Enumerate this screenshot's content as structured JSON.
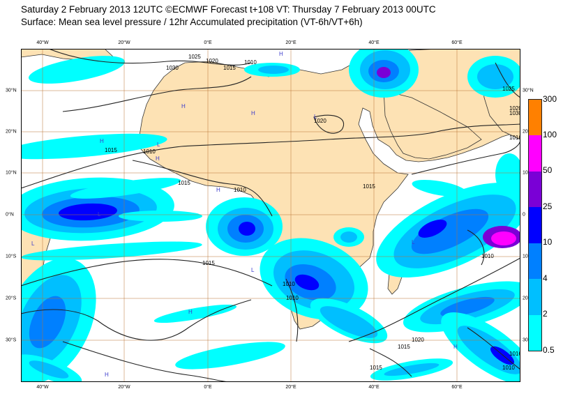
{
  "title_line1": "Saturday 2 February 2013 12UTC ©ECMWF Forecast t+108 VT: Thursday 7 February 2013 00UTC",
  "title_line2": "Surface: Mean sea level pressure / 12hr Accumulated precipitation (VT-6h/VT+6h)",
  "axes": {
    "lon_labels": [
      "40°W",
      "20°W",
      "0°E",
      "20°E",
      "40°E",
      "60°E"
    ],
    "lat_labels_left": [
      "30°N",
      "20°N",
      "10°N",
      "0°N",
      "10°S",
      "20°S",
      "30°S"
    ],
    "lat_labels_right": [
      "30°N",
      "20",
      "10",
      "0",
      "10",
      "20",
      "30"
    ]
  },
  "legend": {
    "values": [
      "0.5",
      "2",
      "4",
      "10",
      "25",
      "50",
      "100",
      "300"
    ],
    "colors": [
      "#00ffff",
      "#00bfff",
      "#0080ff",
      "#0000ff",
      "#7a00d6",
      "#ff00ff",
      "#ff8000",
      "#ff0000"
    ]
  },
  "isobars": [
    "1030",
    "1025",
    "1020",
    "1015",
    "1010",
    "1015",
    "1010",
    "1015",
    "1010",
    "1020",
    "1025",
    "1020",
    "1030",
    "1016",
    "1015",
    "1010",
    "1010",
    "1015",
    "1020",
    "1010",
    "1016",
    "1015",
    "1015",
    "1010"
  ],
  "pressure_centers": [
    "H",
    "H",
    "H",
    "L",
    "H",
    "H",
    "L",
    "H",
    "L",
    "L",
    "L",
    "L",
    "H",
    "H",
    "H"
  ],
  "colors": {
    "land": "#fde2b4",
    "ocean": "#ffffff",
    "grid": "#b87333"
  }
}
